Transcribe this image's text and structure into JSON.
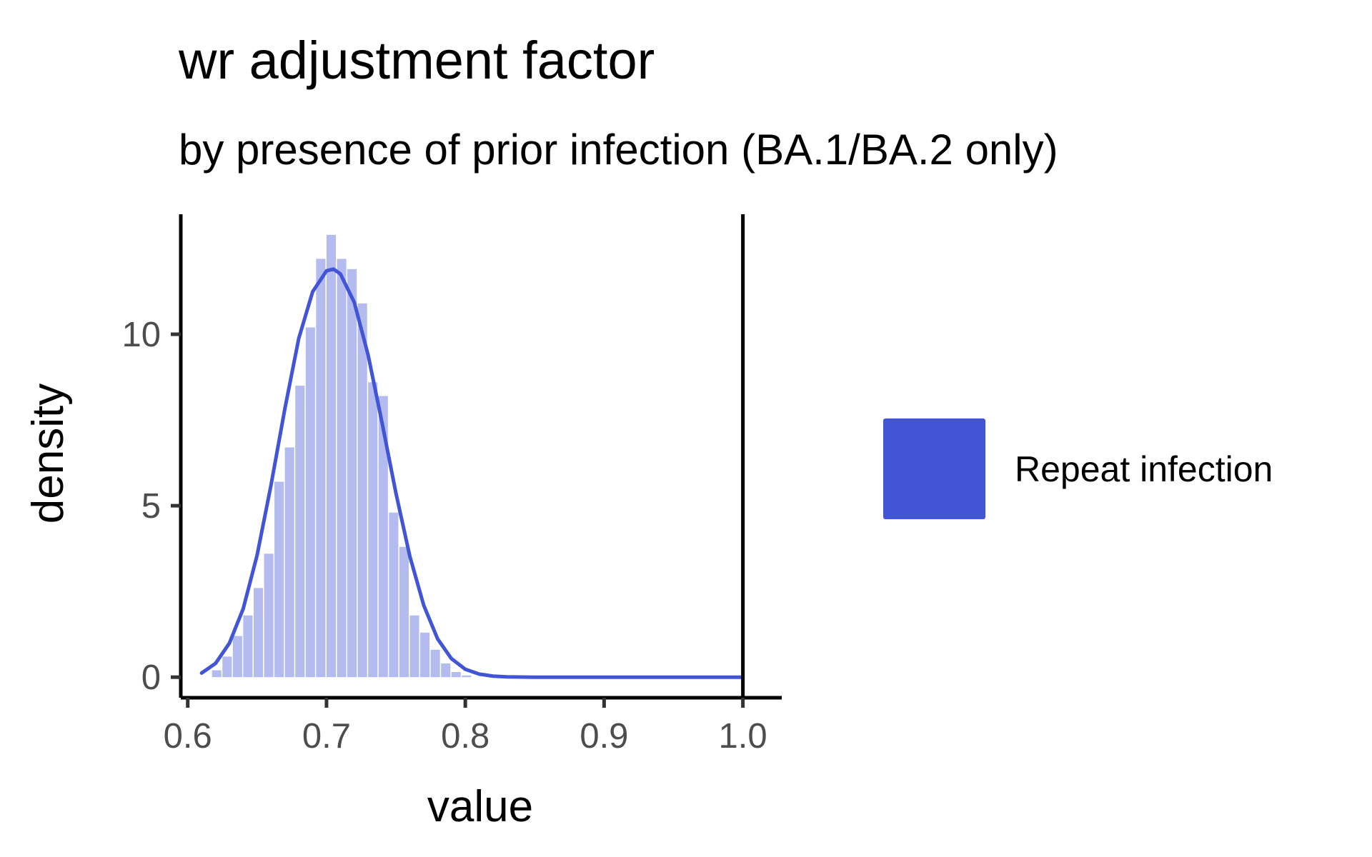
{
  "chart_data": {
    "type": "histogram",
    "title": "wr adjustment factor",
    "subtitle": "by presence of prior infection (BA.1/BA.2 only)",
    "xlabel": "value",
    "ylabel": "density",
    "xlim": [
      0.595,
      1.028
    ],
    "ylim": [
      -0.6,
      13.5
    ],
    "x_ticks": [
      {
        "value": 0.6,
        "label": "0.6"
      },
      {
        "value": 0.7,
        "label": "0.7"
      },
      {
        "value": 0.8,
        "label": "0.8"
      },
      {
        "value": 0.9,
        "label": "0.9"
      },
      {
        "value": 1.0,
        "label": "1.0"
      }
    ],
    "y_ticks": [
      {
        "value": 0,
        "label": "0"
      },
      {
        "value": 5,
        "label": "5"
      },
      {
        "value": 10,
        "label": "10"
      }
    ],
    "reference_line_x": 1.0,
    "grid": false,
    "legend_position": "right",
    "series": [
      {
        "name": "Repeat infection",
        "color": "#4255d6",
        "bin_width": 0.0075,
        "histogram": [
          {
            "x0": 0.6175,
            "x1": 0.625,
            "density": 0.2
          },
          {
            "x0": 0.625,
            "x1": 0.6325,
            "density": 0.6
          },
          {
            "x0": 0.6325,
            "x1": 0.64,
            "density": 1.2
          },
          {
            "x0": 0.64,
            "x1": 0.6475,
            "density": 1.8
          },
          {
            "x0": 0.6475,
            "x1": 0.655,
            "density": 2.6
          },
          {
            "x0": 0.655,
            "x1": 0.6625,
            "density": 3.6
          },
          {
            "x0": 0.6625,
            "x1": 0.67,
            "density": 5.7
          },
          {
            "x0": 0.67,
            "x1": 0.6775,
            "density": 6.7
          },
          {
            "x0": 0.6775,
            "x1": 0.685,
            "density": 8.5
          },
          {
            "x0": 0.685,
            "x1": 0.6925,
            "density": 10.2
          },
          {
            "x0": 0.6925,
            "x1": 0.7,
            "density": 12.2
          },
          {
            "x0": 0.7,
            "x1": 0.7075,
            "density": 12.9
          },
          {
            "x0": 0.7075,
            "x1": 0.715,
            "density": 12.2
          },
          {
            "x0": 0.715,
            "x1": 0.7225,
            "density": 11.9
          },
          {
            "x0": 0.7225,
            "x1": 0.73,
            "density": 10.9
          },
          {
            "x0": 0.73,
            "x1": 0.7375,
            "density": 8.6
          },
          {
            "x0": 0.7375,
            "x1": 0.745,
            "density": 8.2
          },
          {
            "x0": 0.745,
            "x1": 0.7525,
            "density": 4.8
          },
          {
            "x0": 0.7525,
            "x1": 0.76,
            "density": 3.8
          },
          {
            "x0": 0.76,
            "x1": 0.7675,
            "density": 1.8
          },
          {
            "x0": 0.7675,
            "x1": 0.775,
            "density": 1.3
          },
          {
            "x0": 0.775,
            "x1": 0.7825,
            "density": 0.8
          },
          {
            "x0": 0.7825,
            "x1": 0.79,
            "density": 0.4
          },
          {
            "x0": 0.79,
            "x1": 0.7975,
            "density": 0.15
          },
          {
            "x0": 0.7975,
            "x1": 0.805,
            "density": 0.05
          }
        ],
        "density_curve": {
          "x": [
            0.61,
            0.62,
            0.63,
            0.64,
            0.65,
            0.66,
            0.67,
            0.68,
            0.69,
            0.7,
            0.705,
            0.71,
            0.72,
            0.73,
            0.74,
            0.75,
            0.76,
            0.77,
            0.78,
            0.79,
            0.8,
            0.81,
            0.82,
            0.83,
            0.85,
            0.9,
            0.95,
            1.0
          ],
          "y": [
            0.12,
            0.4,
            0.99,
            2.0,
            3.56,
            5.6,
            7.83,
            9.88,
            11.24,
            11.85,
            11.9,
            11.76,
            10.93,
            9.39,
            7.42,
            5.37,
            3.53,
            2.1,
            1.12,
            0.54,
            0.23,
            0.09,
            0.03,
            0.01,
            0.0,
            0.0,
            0.0,
            0.0
          ]
        }
      }
    ],
    "legend": [
      {
        "label": "Repeat infection",
        "color": "#4255d6"
      }
    ]
  }
}
